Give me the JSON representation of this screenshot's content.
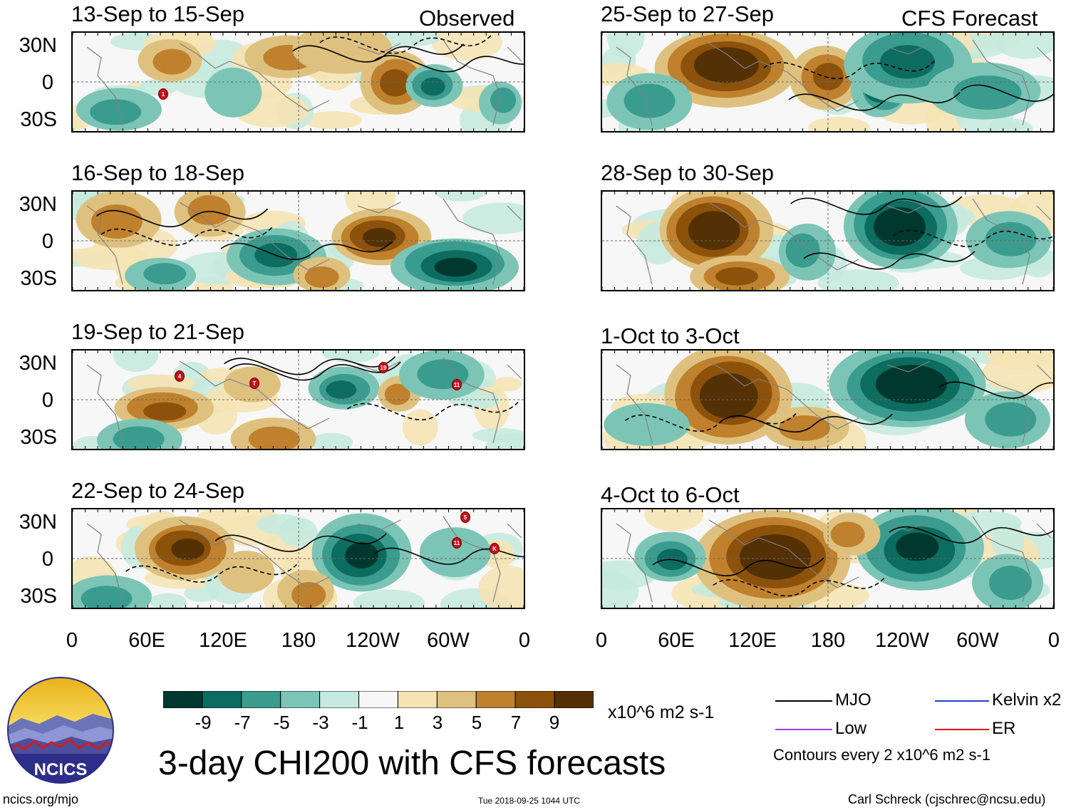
{
  "header": {
    "observed_label": "Observed",
    "forecast_label": "CFS Forecast"
  },
  "panels": {
    "left": [
      {
        "title": "13-Sep to 15-Sep"
      },
      {
        "title": "16-Sep to 18-Sep"
      },
      {
        "title": "19-Sep to 21-Sep"
      },
      {
        "title": "22-Sep to 24-Sep"
      }
    ],
    "right": [
      {
        "title": "25-Sep to 27-Sep"
      },
      {
        "title": "28-Sep to 30-Sep"
      },
      {
        "title": "1-Oct to 3-Oct"
      },
      {
        "title": "4-Oct to 6-Oct"
      }
    ]
  },
  "axes": {
    "lat_labels": [
      "30N",
      "0",
      "30S"
    ],
    "lon_labels": [
      "0",
      "60E",
      "120E",
      "180",
      "120W",
      "60W",
      "0"
    ]
  },
  "colorbar": {
    "tick_labels": [
      "-9",
      "-7",
      "-5",
      "-3",
      "-1",
      "1",
      "3",
      "5",
      "7",
      "9"
    ],
    "colors": [
      "#00382f",
      "#0c6c60",
      "#3a9c8e",
      "#7cc5b6",
      "#c6eadf",
      "#f7f7f7",
      "#f5e3b4",
      "#dfc17f",
      "#bf812d",
      "#8c510a",
      "#543005"
    ],
    "units": "x10^6 m2 s-1"
  },
  "legend": {
    "items": [
      {
        "label": "MJO",
        "color": "#000000"
      },
      {
        "label": "Kelvin x2",
        "color": "#1f3fd0"
      },
      {
        "label": "Low",
        "color": "#a040e0"
      },
      {
        "label": "ER",
        "color": "#e01010"
      }
    ],
    "contour_note": "Contours every 2 x10^6 m2 s-1"
  },
  "logo": {
    "text": "NCICS"
  },
  "main_title": "3-day CHI200 with CFS forecasts",
  "footer": {
    "url": "ncics.org/mjo",
    "timestamp": "Tue 2018-09-25 1044 UTC",
    "author": "Carl Schreck (cjschrec@ncsu.edu)"
  },
  "storm_markers": {
    "panel1": [
      "1"
    ],
    "panel3": [
      "4",
      "T",
      "19",
      "11"
    ],
    "panel4": [
      "5",
      "11",
      "K"
    ]
  }
}
